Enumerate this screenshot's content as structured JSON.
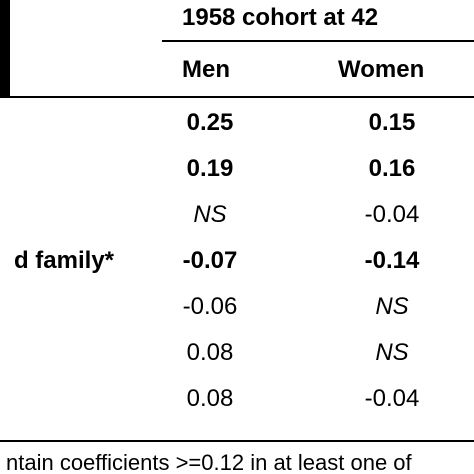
{
  "header": {
    "cohort": "1958 cohort at 42",
    "men": "Men",
    "women": "Women"
  },
  "rows": [
    {
      "label": "",
      "men": "0.25",
      "men_bold": true,
      "men_italic": false,
      "women": "0.15",
      "women_bold": true,
      "women_italic": false
    },
    {
      "label": "",
      "men": "0.19",
      "men_bold": true,
      "men_italic": false,
      "women": "0.16",
      "women_bold": true,
      "women_italic": false
    },
    {
      "label": "",
      "men": "NS",
      "men_bold": false,
      "men_italic": true,
      "women": "-0.04",
      "women_bold": false,
      "women_italic": false
    },
    {
      "label": "d family*",
      "men": "-0.07",
      "men_bold": true,
      "men_italic": false,
      "women": "-0.14",
      "women_bold": true,
      "women_italic": false
    },
    {
      "label": "",
      "men": "-0.06",
      "men_bold": false,
      "men_italic": false,
      "women": "NS",
      "women_bold": false,
      "women_italic": true
    },
    {
      "label": "",
      "men": "0.08",
      "men_bold": false,
      "men_italic": false,
      "women": "NS",
      "women_bold": false,
      "women_italic": true
    },
    {
      "label": "",
      "men": "0.08",
      "men_bold": false,
      "men_italic": false,
      "women": "-0.04",
      "women_bold": false,
      "women_italic": false
    }
  ],
  "footnote": "ntain coefficients >=0.12 in at least one of"
}
